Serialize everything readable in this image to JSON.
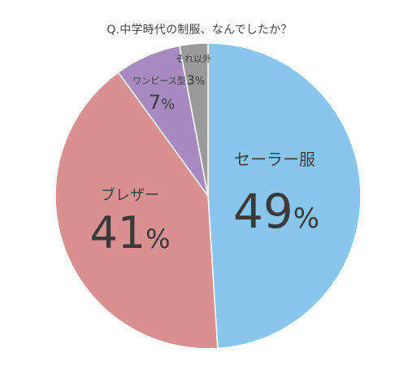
{
  "chart_data": {
    "type": "pie",
    "title": "Q.中学時代の制服、なんでしたか？",
    "slices": [
      {
        "label": "セーラー服",
        "value": 49,
        "value_label": "49%",
        "color": "#88C6EC"
      },
      {
        "label": "ブレザー",
        "value": 41,
        "value_label": "41%",
        "color": "#D99090"
      },
      {
        "label": "ワンピース型",
        "value": 7,
        "value_label": "7%",
        "color": "#A78BC0"
      },
      {
        "label": "それ以外",
        "value": 3,
        "value_label": "3%",
        "color": "#9A9A9A"
      }
    ],
    "start": "top",
    "direction": "clockwise",
    "legend": "none"
  }
}
